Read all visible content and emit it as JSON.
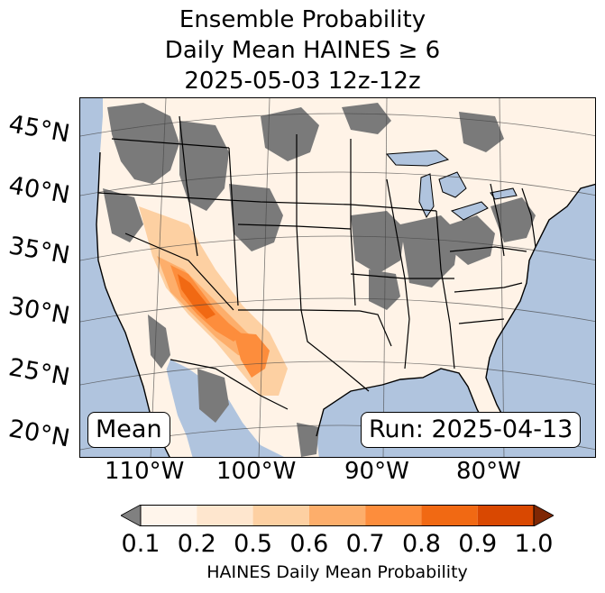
{
  "title": {
    "line1": "Ensemble Probability",
    "line2": "Daily Mean HAINES ≥ 6",
    "line3": "2025-05-03 12z-12z"
  },
  "map": {
    "lat_labels": [
      "45°N",
      "40°N",
      "35°N",
      "30°N",
      "25°N",
      "20°N"
    ],
    "lon_labels": [
      "110°W",
      "100°W",
      "90°W",
      "80°W"
    ],
    "stat_badge": "Mean",
    "run_badge": "Run: 2025-04-13",
    "colors": {
      "ocean": "#b0c4de",
      "missing_gray": "#7a7a7a",
      "land_low": "#fff3e7",
      "boundary": "#000000",
      "lake": "#b0c4de"
    }
  },
  "colorbar": {
    "label": "HAINES Daily Mean Probability",
    "ticks": [
      "0.1",
      "0.2",
      "0.5",
      "0.6",
      "0.7",
      "0.8",
      "0.9",
      "1.0"
    ],
    "colors": [
      "#fff5eb",
      "#fee6ce",
      "#fdd0a2",
      "#fdae6b",
      "#fd8d3c",
      "#f16913",
      "#d94801",
      "#a63603"
    ],
    "under_color": "#808080",
    "over_color": "#7f2704"
  }
}
